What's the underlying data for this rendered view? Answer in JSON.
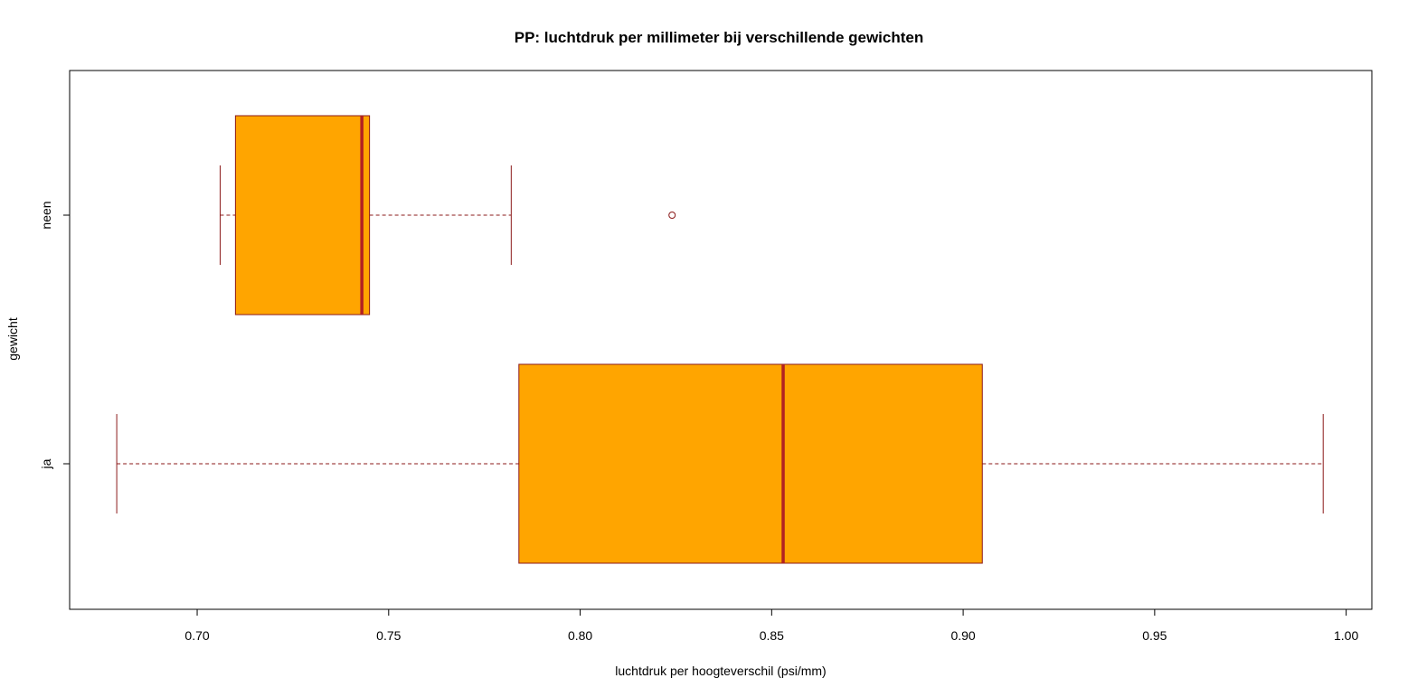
{
  "chart_data": {
    "type": "boxplot",
    "orientation": "horizontal",
    "title": "PP: luchtdruk per millimeter bij verschillende gewichten",
    "xlabel": "luchtdruk per hoogteverschil (psi/mm)",
    "ylabel": "gewicht",
    "xlim": [
      0.6667,
      1.0067
    ],
    "xticks": [
      0.7,
      0.75,
      0.8,
      0.85,
      0.9,
      0.95,
      1.0
    ],
    "xtick_labels": [
      "0.70",
      "0.75",
      "0.80",
      "0.85",
      "0.90",
      "0.95",
      "1.00"
    ],
    "categories": [
      "ja",
      "neen"
    ],
    "series": [
      {
        "category": "ja",
        "whisker_low": 0.679,
        "q1": 0.784,
        "median": 0.853,
        "q3": 0.905,
        "whisker_high": 0.994,
        "outliers": []
      },
      {
        "category": "neen",
        "whisker_low": 0.706,
        "q1": 0.71,
        "median": 0.743,
        "q3": 0.745,
        "whisker_high": 0.782,
        "outliers": [
          0.824
        ]
      }
    ],
    "grid": false,
    "colors": {
      "box_fill": "#FFA500",
      "box_border": "#8B1A1A",
      "median": "#B22222",
      "whisker": "#8B1A1A",
      "outlier": "#8B1A1A",
      "frame": "#000000"
    }
  }
}
